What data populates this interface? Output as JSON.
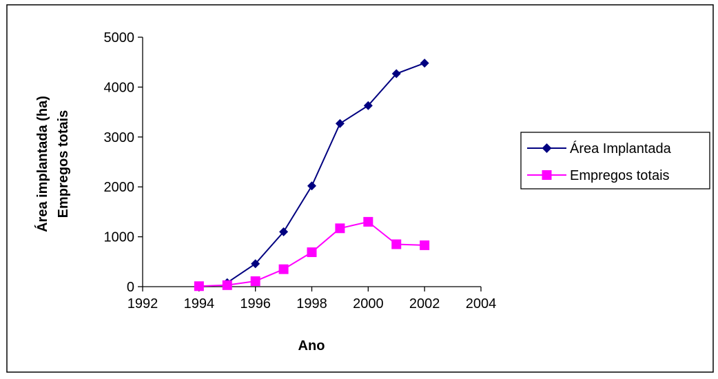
{
  "chart_data": {
    "type": "line",
    "title": "",
    "xlabel": "Ano",
    "ylabel_lines": [
      "Área implantada (ha)",
      "Empregos totais"
    ],
    "xlim": [
      1992,
      2004
    ],
    "ylim": [
      0,
      5000
    ],
    "x_ticks": [
      1992,
      1994,
      1996,
      1998,
      2000,
      2002,
      2004
    ],
    "y_ticks": [
      0,
      1000,
      2000,
      3000,
      4000,
      5000
    ],
    "grid": false,
    "legend_position": "right",
    "series": [
      {
        "name": "Área Implantada",
        "color": "#000080",
        "marker": "diamond",
        "x": [
          1995,
          1996,
          1997,
          1998,
          1999,
          2000,
          2001,
          2002
        ],
        "y": [
          80,
          460,
          1100,
          2020,
          3270,
          3630,
          4270,
          4480
        ]
      },
      {
        "name": "Empregos totais",
        "color": "#FF00FF",
        "marker": "square",
        "x": [
          1994,
          1995,
          1996,
          1997,
          1998,
          1999,
          2000,
          2001,
          2002
        ],
        "y": [
          10,
          30,
          110,
          350,
          690,
          1170,
          1300,
          850,
          830
        ]
      }
    ]
  }
}
